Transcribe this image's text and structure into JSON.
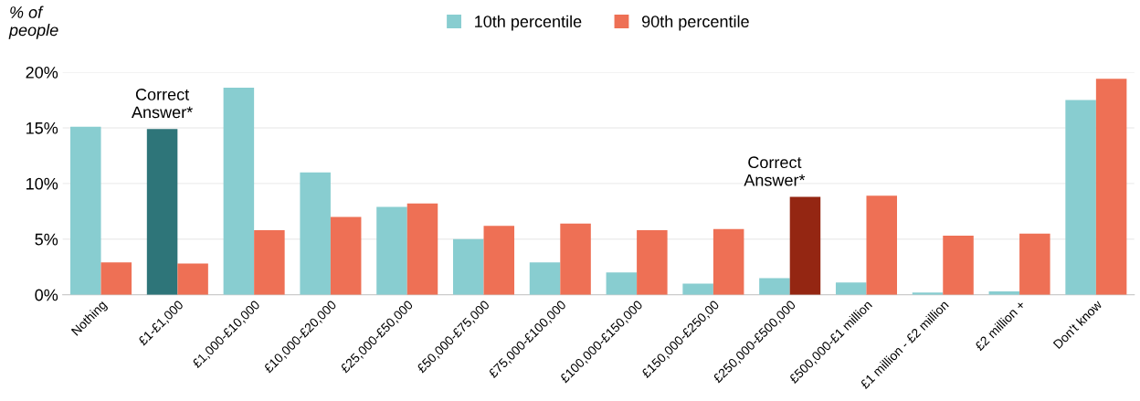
{
  "chart_data": {
    "type": "bar",
    "ylabel": "% of\npeople",
    "categories": [
      "Nothing",
      "£1-£1,000",
      "£1,000-£10,000",
      "£10,000-£20,000",
      "£25,000-£50,000",
      "£50,000-£75,000",
      "£75,000-£100,000",
      "£100,000-£150,000",
      "£150,000-£250,00",
      "£250,000-£500,000",
      "£500,000-£1 million",
      "£1 million - £2 million",
      "£2 million +",
      "Don't know"
    ],
    "series": [
      {
        "name": "10th percentile",
        "color": "#88cdd0",
        "colors": [
          "#88cdd0",
          "#2e7579",
          "#88cdd0",
          "#88cdd0",
          "#88cdd0",
          "#88cdd0",
          "#88cdd0",
          "#88cdd0",
          "#88cdd0",
          "#88cdd0",
          "#88cdd0",
          "#88cdd0",
          "#88cdd0",
          "#88cdd0"
        ],
        "values": [
          15.1,
          14.9,
          18.6,
          11.0,
          7.9,
          5.0,
          2.9,
          2.0,
          1.0,
          1.5,
          1.1,
          0.2,
          0.3,
          17.5
        ]
      },
      {
        "name": "90th percentile",
        "color": "#ee7055",
        "colors": [
          "#ee7055",
          "#ee7055",
          "#ee7055",
          "#ee7055",
          "#ee7055",
          "#ee7055",
          "#ee7055",
          "#ee7055",
          "#ee7055",
          "#942612",
          "#ee7055",
          "#ee7055",
          "#ee7055",
          "#ee7055"
        ],
        "values": [
          2.9,
          2.8,
          5.8,
          7.0,
          8.2,
          6.2,
          6.4,
          5.8,
          5.9,
          8.8,
          8.9,
          5.3,
          5.5,
          19.4
        ]
      }
    ],
    "annotations": [
      {
        "text": "Correct\nAnswer*",
        "x": "£1-£1,000",
        "y": 14.9
      },
      {
        "text": "Correct\nAnswer*",
        "x": "£250,000-£500,000",
        "y": 8.8
      }
    ],
    "ylim": [
      0,
      20
    ],
    "yticks": [
      {
        "value": 0,
        "label": "0%"
      },
      {
        "value": 5,
        "label": "5%"
      },
      {
        "value": 10,
        "label": "10%"
      },
      {
        "value": 15,
        "label": "15%"
      },
      {
        "value": 20,
        "label": "20%"
      }
    ],
    "grid": "y",
    "legend": "top"
  }
}
